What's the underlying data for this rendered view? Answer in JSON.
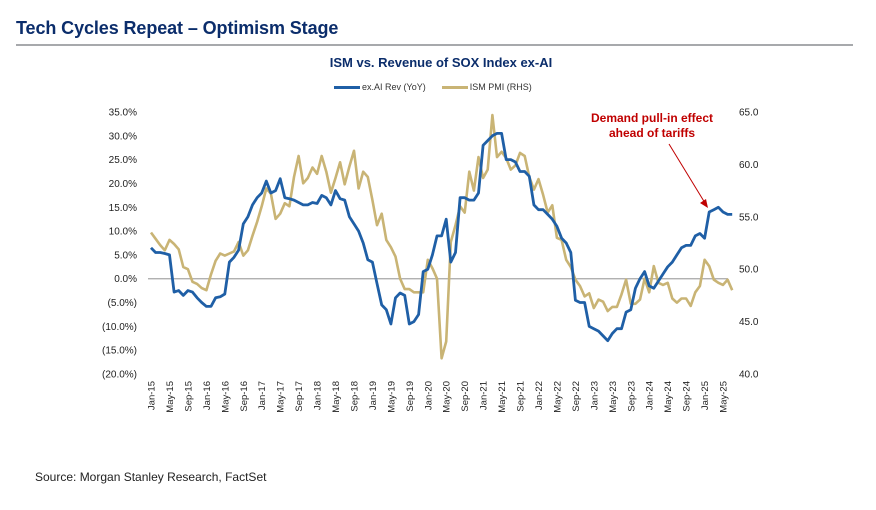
{
  "header": {
    "title": "Tech Cycles Repeat – Optimism Stage"
  },
  "footer": {
    "source": "Source: Morgan Stanley Research, FactSet"
  },
  "colors": {
    "title": "#0b2d6b",
    "rev_series": "#1f5fa6",
    "pmi_series": "#c9b475",
    "zero_line": "#a6a6a6",
    "annotation": "#c00000",
    "rule": "#a7a9ac"
  },
  "chart_data": {
    "type": "line",
    "title": "ISM vs. Revenue of SOX Index ex-AI",
    "xlabel": "",
    "ylabel": "",
    "ylabel_right": "",
    "legend": [
      "ex.AI Rev (YoY)",
      "ISM PMI (RHS)"
    ],
    "legend_position": "top-center",
    "grid": false,
    "y_left": {
      "range": [
        -20,
        35
      ],
      "ticks": [
        35,
        30,
        25,
        20,
        15,
        10,
        5,
        0,
        -5,
        -10,
        -15,
        -20
      ],
      "tick_labels": [
        "35.0%",
        "30.0%",
        "25.0%",
        "20.0%",
        "15.0%",
        "10.0%",
        "5.0%",
        "0.0%",
        "(5.0%)",
        "(10.0%)",
        "(15.0%)",
        "(20.0%)"
      ]
    },
    "y_right": {
      "range": [
        40,
        65
      ],
      "ticks": [
        65,
        60,
        55,
        50,
        45,
        40
      ],
      "tick_labels": [
        "65.0",
        "60.0",
        "55.0",
        "50.0",
        "45.0",
        "40.0"
      ]
    },
    "x_start": "Jan-15",
    "x_frequency": "monthly",
    "x_tick_labels": [
      "Jan-15",
      "May-15",
      "Sep-15",
      "Jan-16",
      "May-16",
      "Sep-16",
      "Jan-17",
      "May-17",
      "Sep-17",
      "Jan-18",
      "May-18",
      "Sep-18",
      "Jan-19",
      "May-19",
      "Sep-19",
      "Jan-20",
      "May-20",
      "Sep-20",
      "Jan-21",
      "May-21",
      "Sep-21",
      "Jan-22",
      "May-22",
      "Sep-22",
      "Jan-23",
      "May-23",
      "Sep-23",
      "Jan-24",
      "May-24",
      "Sep-24",
      "Jan-25",
      "May-25"
    ],
    "series": [
      {
        "name": "ex.AI Rev (YoY)",
        "axis": "left",
        "unit": "%",
        "values": [
          6.5,
          5.5,
          5.5,
          5.3,
          5.0,
          -2.8,
          -2.5,
          -3.5,
          -2.5,
          -2.8,
          -4.0,
          -5.0,
          -5.8,
          -5.8,
          -4.0,
          -3.8,
          -3.2,
          3.5,
          4.5,
          6.0,
          11.5,
          13.0,
          15.5,
          17.0,
          18.0,
          20.5,
          18.0,
          18.5,
          21.0,
          17.0,
          16.8,
          16.5,
          16.0,
          15.5,
          15.5,
          16.0,
          15.8,
          17.5,
          17.0,
          15.5,
          18.5,
          16.8,
          16.5,
          13.0,
          11.5,
          10.0,
          7.5,
          4.0,
          3.5,
          -1.0,
          -5.5,
          -6.5,
          -9.5,
          -4.0,
          -3.0,
          -3.5,
          -9.5,
          -9.0,
          -7.5,
          1.5,
          2.0,
          5.0,
          9.0,
          9.0,
          12.5,
          3.5,
          5.5,
          17.0,
          17.0,
          16.5,
          16.5,
          18.0,
          28.0,
          29.0,
          30.0,
          30.5,
          30.5,
          25.0,
          25.0,
          24.5,
          22.5,
          22.5,
          21.5,
          15.5,
          14.5,
          14.5,
          13.5,
          12.5,
          11.0,
          8.5,
          7.5,
          5.5,
          -4.5,
          -5.0,
          -5.0,
          -10.0,
          -10.5,
          -11.0,
          -12.0,
          -13.0,
          -11.5,
          -10.5,
          -10.5,
          -7.0,
          -6.5,
          -2.0,
          0.0,
          1.5,
          -1.5,
          -2.0,
          -0.5,
          1.0,
          2.5,
          3.5,
          5.0,
          6.5,
          7.0,
          7.0,
          9.0,
          9.5,
          8.5,
          14.0,
          14.5,
          15.0,
          14.0,
          13.5,
          13.5
        ]
      },
      {
        "name": "ISM PMI (RHS)",
        "axis": "right",
        "unit": "index",
        "values": [
          53.5,
          52.9,
          52.3,
          51.8,
          52.8,
          52.4,
          51.9,
          50.2,
          50.0,
          48.8,
          48.6,
          48.2,
          48.0,
          49.5,
          50.8,
          51.5,
          51.3,
          51.5,
          51.7,
          52.6,
          51.3,
          51.8,
          53.2,
          54.5,
          56.0,
          57.7,
          57.2,
          54.8,
          55.3,
          56.3,
          56.0,
          58.8,
          60.8,
          58.2,
          58.7,
          59.7,
          59.1,
          60.8,
          59.3,
          57.3,
          58.7,
          60.2,
          58.1,
          59.8,
          61.3,
          57.7,
          59.3,
          58.8,
          56.6,
          54.2,
          55.3,
          52.8,
          52.1,
          51.2,
          49.1,
          48.1,
          48.1,
          47.8,
          47.8,
          47.8,
          50.9,
          50.1,
          49.1,
          41.5,
          43.1,
          52.6,
          54.2,
          56.0,
          55.4,
          59.3,
          57.5,
          60.7,
          58.7,
          59.5,
          64.7,
          60.7,
          61.2,
          60.6,
          59.5,
          59.9,
          61.1,
          60.8,
          58.8,
          57.6,
          58.6,
          57.1,
          55.4,
          56.1,
          53.0,
          52.8,
          50.9,
          50.2,
          49.0,
          48.4,
          47.4,
          47.7,
          46.3,
          47.1,
          46.9,
          46.0,
          46.4,
          46.4,
          47.6,
          49.0,
          46.7,
          46.7,
          47.1,
          49.1,
          47.8,
          50.3,
          48.7,
          48.5,
          48.7,
          47.2,
          46.8,
          47.2,
          47.2,
          46.5,
          47.8,
          48.4,
          50.9,
          50.3,
          49.0,
          48.7,
          48.5,
          49.0,
          48.0
        ]
      }
    ],
    "annotations": [
      {
        "text_lines": [
          "Demand pull-in effect",
          "ahead of tariffs"
        ],
        "points_to": {
          "series": "ex.AI Rev (YoY)",
          "x": "Jan-25"
        }
      }
    ]
  }
}
